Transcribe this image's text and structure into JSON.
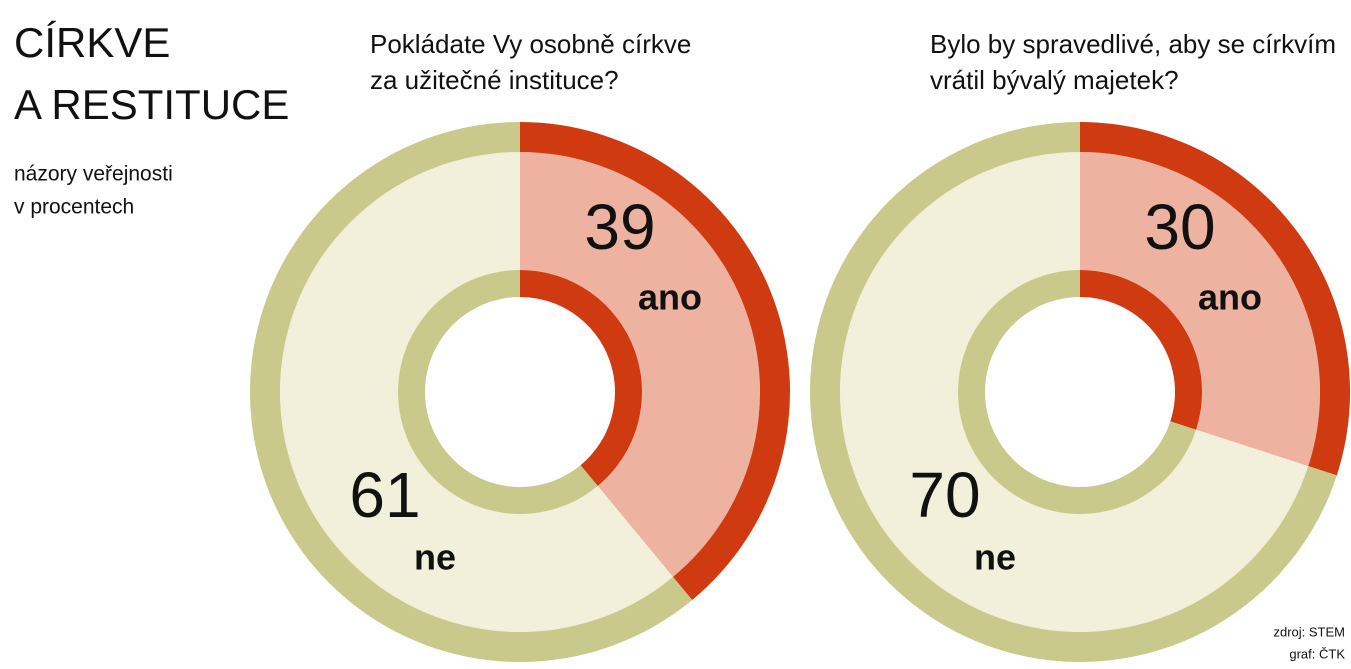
{
  "header": {
    "title": [
      "CÍRKVE",
      "A RESTITUCE"
    ],
    "subtitle": [
      "názory veřejnosti",
      "v procentech"
    ]
  },
  "chart_data": [
    {
      "type": "pie",
      "title": [
        "Pokládate Vy osobně církve",
        "za užitečné instituce?"
      ],
      "categories": [
        "ano",
        "ne"
      ],
      "values": [
        39,
        61
      ],
      "colors": [
        "#d03a10",
        "#c9c98c"
      ],
      "fill_colors": [
        "#eeb3a0",
        "#f2f0da"
      ]
    },
    {
      "type": "pie",
      "title": [
        "Bylo by spravedlivé, aby se církvím",
        "vrátil bývalý majetek?"
      ],
      "categories": [
        "ano",
        "ne"
      ],
      "values": [
        30,
        70
      ],
      "colors": [
        "#d03a10",
        "#c9c98c"
      ],
      "fill_colors": [
        "#eeb3a0",
        "#f2f0da"
      ]
    }
  ],
  "source": [
    "zdroj: STEM",
    "graf: ČTK"
  ]
}
